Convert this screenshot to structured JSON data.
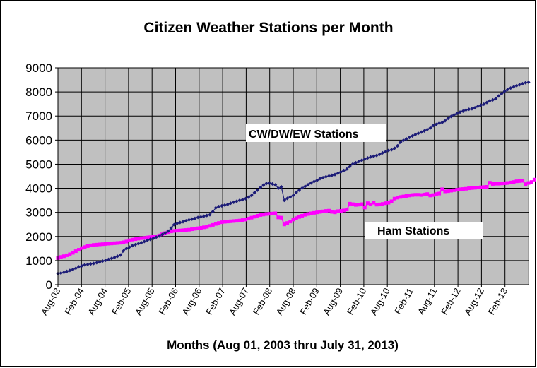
{
  "chart_data": {
    "type": "line",
    "title": "Citizen Weather Stations per Month",
    "xlabel": "Months (Aug 01, 2003 thru July 31, 2013)",
    "ylabel": "",
    "ylim": [
      0,
      9000
    ],
    "yticks": [
      0,
      1000,
      2000,
      3000,
      4000,
      5000,
      6000,
      7000,
      8000,
      9000
    ],
    "xticks": [
      "Aug-03",
      "Feb-04",
      "Aug-04",
      "Feb-05",
      "Aug-05",
      "Feb-06",
      "Aug-06",
      "Feb-07",
      "Aug-07",
      "Feb-08",
      "Aug-08",
      "Feb-09",
      "Aug-09",
      "Feb-10",
      "Aug-10",
      "Feb-11",
      "Aug-11",
      "Feb-12",
      "Aug-12",
      "Feb-13"
    ],
    "grid": true,
    "legend": "none",
    "annotations": [
      {
        "text": "CW/DW/EW Stations",
        "series": "cw"
      },
      {
        "text": "Ham Stations",
        "series": "ham"
      }
    ],
    "series": [
      {
        "id": "cw",
        "color": "#1c1c78",
        "marker": "diamond",
        "values": [
          460,
          480,
          510,
          550,
          590,
          630,
          680,
          740,
          780,
          820,
          840,
          860,
          880,
          910,
          940,
          980,
          1010,
          1050,
          1090,
          1130,
          1180,
          1230,
          1400,
          1500,
          1560,
          1620,
          1660,
          1700,
          1740,
          1790,
          1840,
          1880,
          1920,
          1970,
          2020,
          2080,
          2150,
          2220,
          2350,
          2490,
          2540,
          2580,
          2610,
          2650,
          2690,
          2720,
          2750,
          2790,
          2810,
          2840,
          2870,
          2900,
          3030,
          3190,
          3240,
          3270,
          3300,
          3330,
          3380,
          3420,
          3460,
          3500,
          3530,
          3570,
          3630,
          3700,
          3820,
          3920,
          4030,
          4130,
          4200,
          4210,
          4180,
          4140,
          4000,
          4060,
          3500,
          3580,
          3640,
          3700,
          3820,
          3920,
          4010,
          4080,
          4150,
          4220,
          4280,
          4330,
          4400,
          4440,
          4480,
          4510,
          4540,
          4570,
          4620,
          4680,
          4740,
          4800,
          4900,
          5010,
          5060,
          5110,
          5160,
          5210,
          5260,
          5300,
          5330,
          5360,
          5410,
          5470,
          5520,
          5570,
          5600,
          5660,
          5760,
          5910,
          5990,
          6050,
          6110,
          6170,
          6230,
          6280,
          6330,
          6380,
          6440,
          6500,
          6600,
          6650,
          6700,
          6730,
          6800,
          6900,
          6980,
          7050,
          7110,
          7160,
          7200,
          7250,
          7280,
          7300,
          7340,
          7400,
          7450,
          7490,
          7560,
          7630,
          7670,
          7720,
          7830,
          7930,
          8030,
          8100,
          8160,
          8210,
          8260,
          8300,
          8340,
          8380,
          8400
        ]
      },
      {
        "id": "ham",
        "color": "#ff00ff",
        "marker": "square",
        "values": [
          1100,
          1150,
          1180,
          1220,
          1260,
          1320,
          1390,
          1450,
          1520,
          1560,
          1600,
          1630,
          1650,
          1660,
          1670,
          1680,
          1690,
          1700,
          1710,
          1720,
          1730,
          1740,
          1760,
          1790,
          1840,
          1870,
          1890,
          1910,
          1930,
          1940,
          1960,
          1970,
          1980,
          2000,
          2040,
          2090,
          2140,
          2180,
          2210,
          2230,
          2240,
          2250,
          2260,
          2270,
          2280,
          2300,
          2320,
          2340,
          2360,
          2380,
          2400,
          2440,
          2480,
          2520,
          2560,
          2590,
          2610,
          2620,
          2630,
          2640,
          2650,
          2660,
          2680,
          2700,
          2740,
          2780,
          2820,
          2860,
          2890,
          2910,
          2930,
          2940,
          2950,
          2960,
          2790,
          2780,
          2500,
          2560,
          2620,
          2700,
          2760,
          2810,
          2860,
          2900,
          2930,
          2960,
          2980,
          3000,
          3020,
          3040,
          3060,
          3070,
          3020,
          3000,
          3050,
          3060,
          3080,
          3120,
          3360,
          3340,
          3310,
          3320,
          3340,
          3200,
          3380,
          3330,
          3400,
          3320,
          3330,
          3350,
          3380,
          3400,
          3460,
          3570,
          3610,
          3640,
          3660,
          3680,
          3700,
          3720,
          3730,
          3730,
          3720,
          3740,
          3760,
          3700,
          3720,
          3760,
          3780,
          3960,
          3870,
          3880,
          3900,
          3920,
          3940,
          3960,
          3970,
          3980,
          4000,
          4010,
          4020,
          4030,
          4040,
          4050,
          4060,
          4230,
          4180,
          4190,
          4190,
          4200,
          4210,
          4220,
          4240,
          4260,
          4290,
          4300,
          4310,
          4170,
          4220,
          4260,
          4360
        ]
      }
    ]
  }
}
